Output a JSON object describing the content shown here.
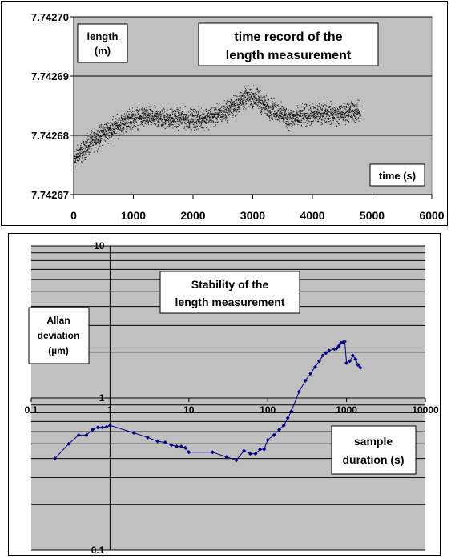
{
  "chart_data": [
    {
      "type": "scatter",
      "title": "time record of the length measurement",
      "title_lines": [
        "time record of the",
        "length measurement"
      ],
      "ylabel_lines": [
        "length",
        "(m)"
      ],
      "xlabel": "time (s)",
      "xlim": [
        0,
        6000
      ],
      "ylim": [
        7.74267,
        7.7427
      ],
      "x_ticks": [
        0,
        1000,
        2000,
        3000,
        4000,
        5000,
        6000
      ],
      "x_tick_labels": [
        "0",
        "1000",
        "2000",
        "3000",
        "4000",
        "5000",
        "6000"
      ],
      "y_ticks": [
        7.74267,
        7.74268,
        7.74269,
        7.7427
      ],
      "y_tick_labels": [
        "7.74267",
        "7.74268",
        "7.74269",
        "7.74270"
      ],
      "grid": "horizontal",
      "plot_background": "#c0c0c0",
      "marker_color": "#000000",
      "series": [
        {
          "trend_x": [
            0,
            100,
            200,
            300,
            400,
            500,
            600,
            700,
            800,
            900,
            1000,
            1200,
            1400,
            1600,
            1800,
            2000,
            2200,
            2400,
            2500,
            2600,
            2700,
            2800,
            2900,
            3000,
            3100,
            3200,
            3300,
            3400,
            3500,
            3600,
            3700,
            3800,
            3900,
            4000,
            4200,
            4400,
            4600,
            4800
          ],
          "trend_y": [
            7.742676,
            7.742677,
            7.742678,
            7.742679,
            7.7426797,
            7.7426805,
            7.742681,
            7.7426815,
            7.742682,
            7.7426825,
            7.742683,
            7.7426832,
            7.742683,
            7.7426828,
            7.742683,
            7.7426828,
            7.742683,
            7.7426835,
            7.742684,
            7.7426845,
            7.742685,
            7.742686,
            7.7426865,
            7.7426865,
            7.742686,
            7.742685,
            7.7426845,
            7.742684,
            7.7426835,
            7.742683,
            7.742683,
            7.7426832,
            7.7426835,
            7.7426835,
            7.742684,
            7.7426835,
            7.742684,
            7.742684
          ],
          "spread": 2.5e-06
        }
      ]
    },
    {
      "type": "line",
      "title": "Stability of the length measurement",
      "title_lines": [
        "Stability of the",
        "length measurement"
      ],
      "ylabel_lines": [
        "Allan",
        "deviation",
        "(µm)"
      ],
      "xlabel_lines": [
        "sample",
        "duration (s)"
      ],
      "x_scale": "log",
      "y_scale": "log",
      "xlim": [
        0.1,
        10000
      ],
      "ylim": [
        0.1,
        10
      ],
      "x_ticks": [
        0.1,
        1,
        10,
        100,
        1000,
        10000
      ],
      "x_tick_labels": [
        "0.1",
        "1",
        "10",
        "100",
        "1000",
        "10000"
      ],
      "y_ticks": [
        0.1,
        1,
        10
      ],
      "y_tick_labels": [
        "0.1",
        "1",
        "10"
      ],
      "grid": "horizontal",
      "plot_background": "#c0c0c0",
      "line_color": "#000080",
      "series": [
        {
          "x": [
            0.2,
            0.3,
            0.4,
            0.5,
            0.6,
            0.7,
            0.8,
            0.9,
            1,
            2,
            3,
            4,
            5,
            6,
            7,
            8,
            9,
            10,
            20,
            30,
            40,
            50,
            60,
            70,
            80,
            90,
            100,
            120,
            140,
            160,
            180,
            200,
            250,
            300,
            350,
            400,
            450,
            500,
            550,
            600,
            700,
            750,
            800,
            850,
            900,
            950,
            1000,
            1100,
            1200,
            1300,
            1400,
            1500
          ],
          "y": [
            0.4,
            0.5,
            0.57,
            0.57,
            0.62,
            0.64,
            0.64,
            0.645,
            0.66,
            0.59,
            0.55,
            0.52,
            0.51,
            0.49,
            0.48,
            0.48,
            0.47,
            0.44,
            0.44,
            0.41,
            0.39,
            0.45,
            0.43,
            0.43,
            0.46,
            0.46,
            0.53,
            0.57,
            0.62,
            0.66,
            0.74,
            0.82,
            1.1,
            1.3,
            1.45,
            1.6,
            1.75,
            1.9,
            1.98,
            2.05,
            2.1,
            2.12,
            2.2,
            2.3,
            2.32,
            2.35,
            1.7,
            1.75,
            1.9,
            1.8,
            1.65,
            1.58
          ]
        }
      ]
    }
  ]
}
